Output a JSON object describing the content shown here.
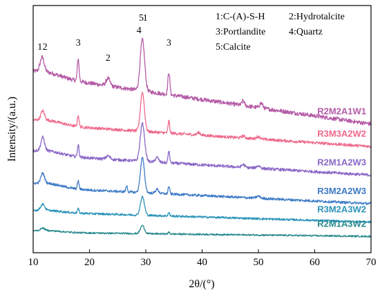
{
  "chart_data": {
    "type": "line",
    "xlabel": "2θ/(°)",
    "ylabel": "Intensity/(a.u.)",
    "xlim": [
      10,
      70
    ],
    "x_ticks": [
      10,
      20,
      30,
      40,
      50,
      60,
      70
    ],
    "y_ticks_shown": false,
    "grid": false,
    "legend_placement": "top-right",
    "phase_legend": [
      [
        "1:C-(A)-S-H",
        "2:Hydrotalcite"
      ],
      [
        "3:Portlandite",
        "4:Quartz"
      ],
      [
        "5:Calcite"
      ]
    ],
    "peak_annotations": [
      {
        "label": "1",
        "x": 11.2
      },
      {
        "label": "2",
        "x": 12.1
      },
      {
        "label": "3",
        "x": 18.0
      },
      {
        "label": "2",
        "x": 23.3
      },
      {
        "label": "4",
        "x": 28.8
      },
      {
        "label": "5",
        "x": 29.2
      },
      {
        "label": "1",
        "x": 29.9
      },
      {
        "label": "3",
        "x": 34.1
      }
    ],
    "series": [
      {
        "name": "R2M2A1W1",
        "color": "#b45aa6",
        "baseline_start": 3.9,
        "baseline_end": 2.7,
        "noise": 0.05,
        "peaks": [
          [
            11.6,
            0.35,
            0.5
          ],
          [
            18.0,
            0.55,
            0.22
          ],
          [
            23.3,
            0.18,
            0.5
          ],
          [
            29.4,
            1.25,
            0.55
          ],
          [
            34.1,
            0.55,
            0.25
          ],
          [
            47.3,
            0.12,
            0.3
          ],
          [
            50.5,
            0.12,
            0.4
          ]
        ]
      },
      {
        "name": "R3M3A2W2",
        "color": "#ee6a8c",
        "baseline_start": 2.7,
        "baseline_end": 2.15,
        "noise": 0.035,
        "peaks": [
          [
            11.7,
            0.22,
            0.45
          ],
          [
            18.0,
            0.28,
            0.2
          ],
          [
            29.4,
            0.95,
            0.5
          ],
          [
            34.1,
            0.3,
            0.2
          ],
          [
            39.4,
            0.06,
            0.4
          ],
          [
            47.3,
            0.05,
            0.4
          ],
          [
            50.0,
            0.06,
            0.5
          ]
        ]
      },
      {
        "name": "R2M1A2W3",
        "color": "#8a67c6",
        "baseline_start": 1.95,
        "baseline_end": 1.45,
        "noise": 0.035,
        "peaks": [
          [
            11.7,
            0.32,
            0.45
          ],
          [
            18.0,
            0.3,
            0.2
          ],
          [
            23.3,
            0.08,
            0.5
          ],
          [
            29.4,
            0.92,
            0.55
          ],
          [
            32.0,
            0.12,
            0.4
          ],
          [
            34.1,
            0.3,
            0.2
          ],
          [
            47.3,
            0.07,
            0.4
          ],
          [
            50.0,
            0.06,
            0.5
          ]
        ]
      },
      {
        "name": "R3M2A2W3",
        "color": "#3d7bc6",
        "baseline_start": 1.15,
        "baseline_end": 0.75,
        "noise": 0.03,
        "peaks": [
          [
            11.7,
            0.24,
            0.45
          ],
          [
            18.0,
            0.2,
            0.2
          ],
          [
            26.6,
            0.15,
            0.2
          ],
          [
            29.4,
            0.85,
            0.5
          ],
          [
            32.0,
            0.1,
            0.4
          ],
          [
            34.1,
            0.18,
            0.2
          ],
          [
            50.0,
            0.05,
            0.5
          ]
        ]
      },
      {
        "name": "R3M2A3W2",
        "color": "#2a93b8",
        "baseline_start": 0.55,
        "baseline_end": 0.3,
        "noise": 0.025,
        "peaks": [
          [
            11.7,
            0.15,
            0.5
          ],
          [
            18.0,
            0.1,
            0.2
          ],
          [
            29.4,
            0.45,
            0.5
          ],
          [
            34.1,
            0.08,
            0.2
          ]
        ]
      },
      {
        "name": "R2M1A3W2",
        "color": "#2a8a8e",
        "baseline_start": 0.05,
        "baseline_end": -0.05,
        "noise": 0.02,
        "peaks": [
          [
            11.7,
            0.06,
            0.5
          ],
          [
            29.4,
            0.2,
            0.5
          ],
          [
            34.1,
            0.04,
            0.2
          ]
        ]
      }
    ]
  }
}
